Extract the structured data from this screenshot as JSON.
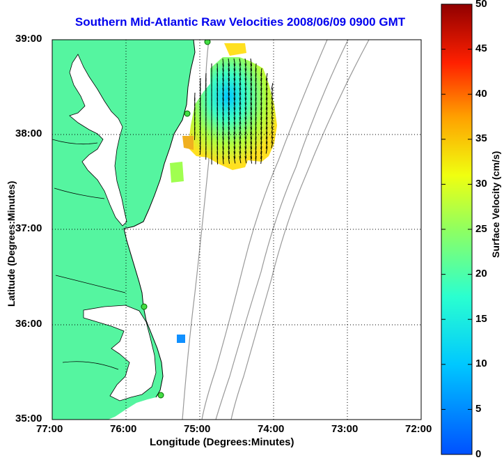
{
  "title": "Southern Mid-Atlantic Raw Velocities 2008/06/09 0900 GMT",
  "axes": {
    "x_label": "Longitude (Degrees:Minutes)",
    "y_label": "Latitude (Degrees:Minutes)",
    "x_ticks": [
      "77:00",
      "76:00",
      "75:00",
      "74:00",
      "73:00",
      "72:00"
    ],
    "y_ticks": [
      "39:00",
      "38:00",
      "37:00",
      "36:00",
      "35:00"
    ]
  },
  "colorbar": {
    "label": "Surface Velocity (cm/s)",
    "ticks": [
      "50",
      "45",
      "40",
      "35",
      "30",
      "25",
      "20",
      "15",
      "10",
      "5",
      "0"
    ]
  },
  "colors": {
    "land": "#55f5a0",
    "title": "#0000ee",
    "bathy": "#999999"
  }
}
